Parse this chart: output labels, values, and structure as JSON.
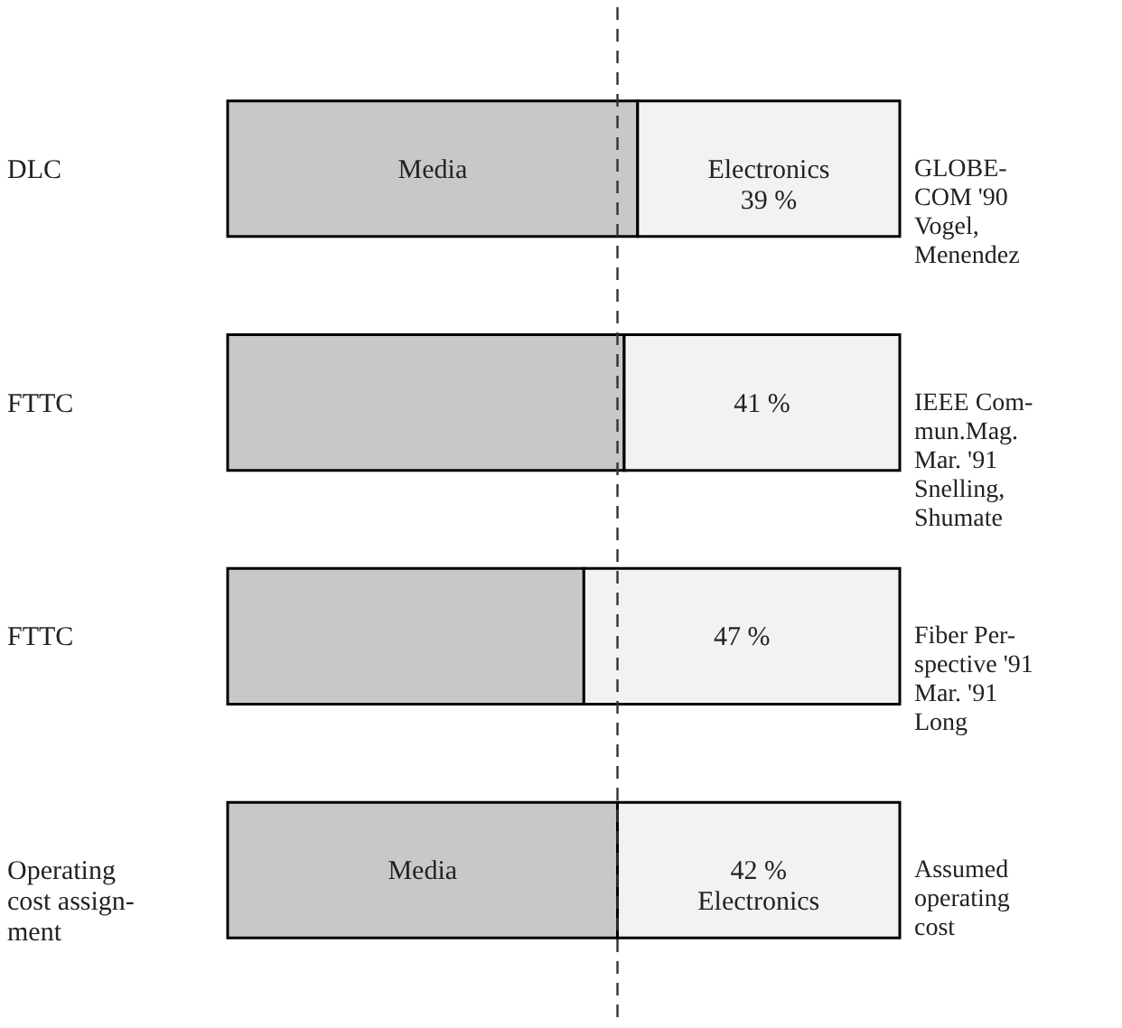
{
  "chart_data": {
    "type": "bar",
    "orientation": "horizontal",
    "stacked": true,
    "xlim": [
      0,
      100
    ],
    "categories": [
      "DLC",
      "FTTC",
      "FTTC",
      "Operating\ncost assign-\nment"
    ],
    "series": [
      {
        "name": "Media",
        "color": "#c8c8c8",
        "values": [
          61,
          59,
          53,
          58
        ]
      },
      {
        "name": "Electronics",
        "color": "#f2f2f2",
        "values": [
          39,
          41,
          47,
          42
        ],
        "value_labels": [
          "39 %",
          "41 %",
          "47 %",
          "42 %"
        ]
      }
    ],
    "ref_lines": [
      {
        "axis": "x",
        "value": 58,
        "line_style": "dashed",
        "color": "#333333"
      }
    ],
    "annotations": [
      "GLOBE-\nCOM '90\nVogel,\nMenendez",
      "IEEE Com-\nmun.Mag.\nMar. '91\nSnelling,\nShumate",
      "Fiber Per-\nspective '91\nMar. '91\nLong",
      "Assumed\noperating\ncost"
    ]
  }
}
